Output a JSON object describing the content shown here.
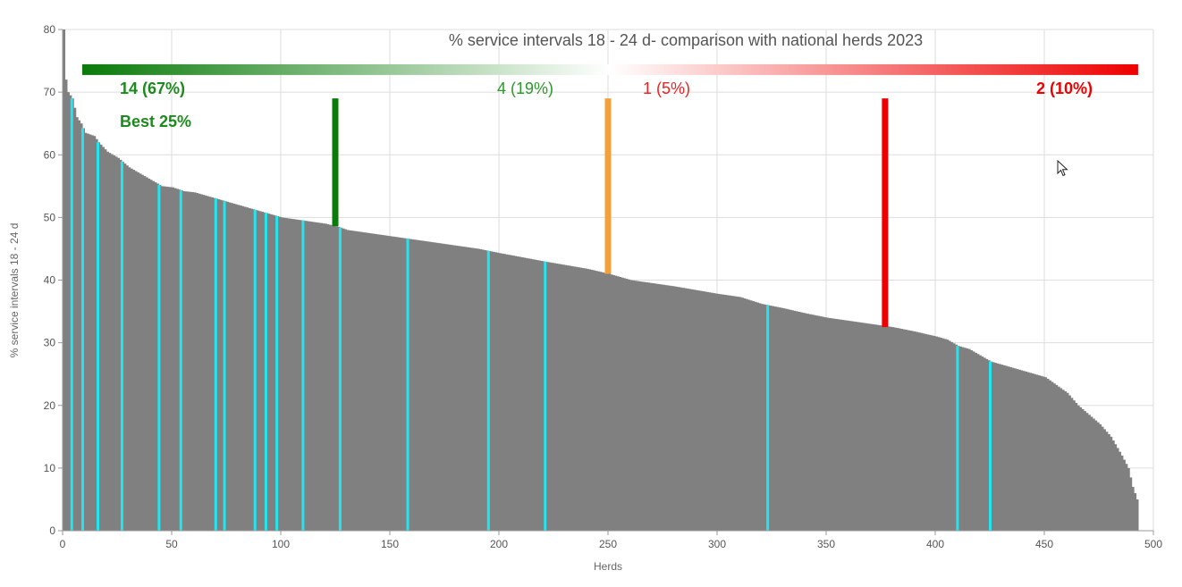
{
  "chart_data": {
    "type": "bar",
    "title": "% service intervals 18 - 24 d- comparison with national herds 2023",
    "xlabel": "Herds",
    "ylabel": "% service intervals 18 - 24 d",
    "xlim": [
      0,
      500
    ],
    "ylim": [
      0,
      80
    ],
    "x_ticks": [
      0,
      50,
      100,
      150,
      200,
      250,
      300,
      350,
      400,
      450,
      500
    ],
    "y_ticks": [
      0,
      10,
      20,
      30,
      40,
      50,
      60,
      70,
      80
    ],
    "grid": true,
    "n_herds": 493,
    "bar_color": "#808080",
    "highlight_color": "#22e5f0",
    "distribution_profile": [
      [
        0,
        80
      ],
      [
        1,
        72
      ],
      [
        2,
        70
      ],
      [
        4,
        69
      ],
      [
        6,
        66
      ],
      [
        8,
        65
      ],
      [
        10,
        63.5
      ],
      [
        14,
        63
      ],
      [
        16,
        62
      ],
      [
        20,
        60.5
      ],
      [
        25,
        59.5
      ],
      [
        30,
        58
      ],
      [
        35,
        57
      ],
      [
        40,
        56
      ],
      [
        45,
        55
      ],
      [
        50,
        54.8
      ],
      [
        55,
        54.2
      ],
      [
        60,
        54
      ],
      [
        65,
        53.5
      ],
      [
        70,
        53
      ],
      [
        75,
        52.5
      ],
      [
        80,
        52
      ],
      [
        90,
        51
      ],
      [
        100,
        50
      ],
      [
        110,
        49.5
      ],
      [
        120,
        49
      ],
      [
        126,
        48.5
      ],
      [
        130,
        48
      ],
      [
        150,
        47
      ],
      [
        170,
        46
      ],
      [
        190,
        45
      ],
      [
        200,
        44.3
      ],
      [
        220,
        43
      ],
      [
        240,
        41.8
      ],
      [
        250,
        41
      ],
      [
        260,
        40
      ],
      [
        270,
        39.5
      ],
      [
        280,
        39
      ],
      [
        300,
        37.8
      ],
      [
        310,
        37.3
      ],
      [
        320,
        36.2
      ],
      [
        330,
        35.5
      ],
      [
        340,
        34.7
      ],
      [
        350,
        34
      ],
      [
        360,
        33.5
      ],
      [
        370,
        33
      ],
      [
        380,
        32.5
      ],
      [
        390,
        31.8
      ],
      [
        400,
        31
      ],
      [
        405,
        30.5
      ],
      [
        410,
        29.5
      ],
      [
        415,
        29
      ],
      [
        420,
        28
      ],
      [
        425,
        27
      ],
      [
        430,
        26.5
      ],
      [
        440,
        25.5
      ],
      [
        450,
        24.5
      ],
      [
        460,
        22
      ],
      [
        465,
        20
      ],
      [
        470,
        18.5
      ],
      [
        475,
        17
      ],
      [
        480,
        15
      ],
      [
        485,
        12
      ],
      [
        488,
        10
      ],
      [
        490,
        7
      ],
      [
        492,
        5
      ],
      [
        493,
        4
      ]
    ],
    "highlighted_herds": [
      4,
      9,
      16,
      27,
      44,
      54,
      70,
      74,
      88,
      93,
      98,
      110,
      127,
      158,
      195,
      221,
      323,
      410,
      425
    ],
    "markers": [
      {
        "x": 125,
        "top": 69,
        "bottom": 48.6,
        "color": "#0a7a0a"
      },
      {
        "x": 250,
        "top": 69,
        "bottom": 41,
        "color": "#f4a03a"
      },
      {
        "x": 377,
        "top": 69,
        "bottom": 32.5,
        "color": "#ee0000"
      }
    ],
    "gradient_bar": {
      "x_start": 9,
      "x_end": 493,
      "y": 73.5,
      "colors": [
        "#0a7a0a",
        "#ffffff",
        "#ee0000"
      ]
    },
    "groups": [
      {
        "label": "14 (67%)",
        "color": "#1d8a1d",
        "bold": true
      },
      {
        "label": "4 (19%)",
        "color": "#2a9a2a",
        "bold": false
      },
      {
        "label": "1 (5%)",
        "color": "#ee2222",
        "bold": false
      },
      {
        "label": "2 (10%)",
        "color": "#ee0000",
        "bold": true
      }
    ],
    "best_label": "Best 25%"
  }
}
